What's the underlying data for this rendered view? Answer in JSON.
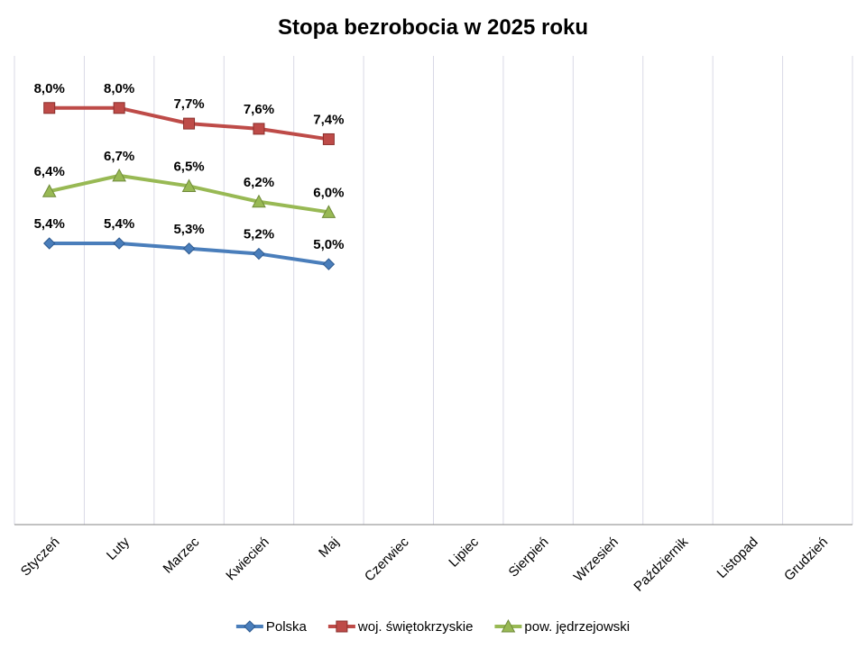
{
  "chart_data": {
    "type": "line",
    "title": "Stopa bezrobocia w 2025 roku",
    "categories": [
      "Styczeń",
      "Luty",
      "Marzec",
      "Kwiecień",
      "Maj",
      "Czerwiec",
      "Lipiec",
      "Sierpień",
      "Wrzesień",
      "Październik",
      "Listopad",
      "Grudzień"
    ],
    "series": [
      {
        "name": "Polska",
        "color": "#4a7ebb",
        "marker": "diamond",
        "values": [
          5.4,
          5.4,
          5.3,
          5.2,
          5.0,
          null,
          null,
          null,
          null,
          null,
          null,
          null
        ],
        "value_labels": [
          "5,4%",
          "5,4%",
          "5,3%",
          "5,2%",
          "5,0%",
          null,
          null,
          null,
          null,
          null,
          null,
          null
        ]
      },
      {
        "name": "woj. świętokrzyskie",
        "color": "#be4b48",
        "marker": "square",
        "values": [
          8.0,
          8.0,
          7.7,
          7.6,
          7.4,
          null,
          null,
          null,
          null,
          null,
          null,
          null
        ],
        "value_labels": [
          "8,0%",
          "8,0%",
          "7,7%",
          "7,6%",
          "7,4%",
          null,
          null,
          null,
          null,
          null,
          null,
          null
        ]
      },
      {
        "name": "pow. jędrzejowski",
        "color": "#98b954",
        "marker": "triangle",
        "values": [
          6.4,
          6.7,
          6.5,
          6.2,
          6.0,
          null,
          null,
          null,
          null,
          null,
          null,
          null
        ],
        "value_labels": [
          "6,4%",
          "6,7%",
          "6,5%",
          "6,2%",
          "6,0%",
          null,
          null,
          null,
          null,
          null,
          null,
          null
        ]
      }
    ],
    "ylim": [
      0,
      9
    ],
    "legend": "bottom"
  }
}
